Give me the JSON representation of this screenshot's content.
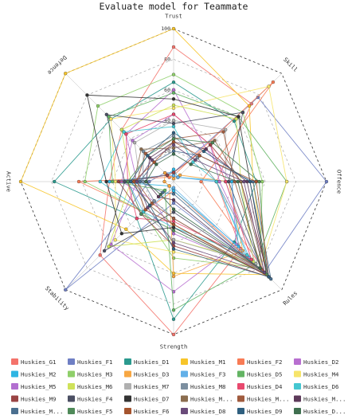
{
  "chart_data": {
    "type": "radar",
    "title": "Evaluate model for Teammate",
    "axes": [
      "Trust",
      "Skill",
      "Offence",
      "Rules",
      "Strength",
      "Stability",
      "Active",
      "Defence"
    ],
    "radial_range": [
      0,
      100
    ],
    "radial_ticks": [
      20,
      40,
      60,
      80,
      100
    ],
    "grid": true,
    "legend_position": "bottom",
    "series": [
      {
        "name": "Huskies_G1",
        "color": "#f4736b",
        "values": [
          88,
          72,
          28,
          62,
          100,
          68,
          42,
          48
        ]
      },
      {
        "name": "Huskies_F1",
        "color": "#6f7fc4",
        "values": [
          6,
          78,
          100,
          84,
          14,
          100,
          16,
          8
        ]
      },
      {
        "name": "Huskies_D1",
        "color": "#2b9a8e",
        "values": [
          65,
          56,
          54,
          56,
          90,
          34,
          78,
          58
        ]
      },
      {
        "name": "Huskies_M1",
        "color": "#f7c52a",
        "values": [
          100,
          70,
          52,
          86,
          60,
          44,
          100,
          100
        ]
      },
      {
        "name": "Huskies_F2",
        "color": "#f87b55",
        "values": [
          4,
          92,
          18,
          88,
          6,
          28,
          62,
          4
        ]
      },
      {
        "name": "Huskies_D2",
        "color": "#b86fd0",
        "values": [
          60,
          30,
          38,
          58,
          72,
          58,
          24,
          44
        ]
      },
      {
        "name": "Huskies_M2",
        "color": "#2fb5e3",
        "values": [
          8,
          4,
          38,
          60,
          6,
          4,
          42,
          6
        ]
      },
      {
        "name": "Huskies_M3",
        "color": "#8fcf6a",
        "values": [
          70,
          64,
          58,
          80,
          50,
          28,
          58,
          70
        ]
      },
      {
        "name": "Huskies_D3",
        "color": "#f7a743",
        "values": [
          2,
          6,
          36,
          64,
          62,
          4,
          6,
          8
        ]
      },
      {
        "name": "Huskies_F3",
        "color": "#62b0e8",
        "values": [
          4,
          4,
          28,
          70,
          4,
          28,
          30,
          6
        ]
      },
      {
        "name": "Huskies_D5",
        "color": "#63b463",
        "values": [
          58,
          60,
          74,
          76,
          84,
          8,
          40,
          60
        ]
      },
      {
        "name": "Huskies_M4",
        "color": "#f6e46a",
        "values": [
          48,
          88,
          74,
          80,
          46,
          54,
          38,
          58
        ]
      },
      {
        "name": "Huskies_M5",
        "color": "#b26fd0",
        "values": [
          44,
          34,
          30,
          82,
          34,
          18,
          34,
          38
        ]
      },
      {
        "name": "Huskies_M6",
        "color": "#cfe25a",
        "values": [
          50,
          58,
          44,
          74,
          38,
          60,
          28,
          48
        ]
      },
      {
        "name": "Huskies_M7",
        "color": "#b0b0b0",
        "values": [
          40,
          48,
          34,
          76,
          38,
          28,
          22,
          36
        ]
      },
      {
        "name": "Huskies_M8",
        "color": "#7c8fa0",
        "values": [
          30,
          22,
          28,
          84,
          24,
          18,
          20,
          28
        ]
      },
      {
        "name": "Huskies_D4",
        "color": "#e8496e",
        "values": [
          44,
          34,
          34,
          72,
          26,
          34,
          30,
          44
        ]
      },
      {
        "name": "Huskies_D6",
        "color": "#45c7d1",
        "values": [
          36,
          18,
          28,
          68,
          30,
          28,
          48,
          46
        ]
      },
      {
        "name": "Huskies_M9",
        "color": "#9a4444",
        "values": [
          6,
          34,
          44,
          88,
          42,
          30,
          36,
          6
        ]
      },
      {
        "name": "Huskies_F4",
        "color": "#4b4f63",
        "values": [
          38,
          64,
          36,
          82,
          20,
          64,
          32,
          62
        ]
      },
      {
        "name": "Huskies_D7",
        "color": "#333333",
        "values": [
          54,
          60,
          50,
          86,
          30,
          48,
          44,
          80
        ]
      },
      {
        "name": "Huskies_M...",
        "color": "#8b6d4f",
        "values": [
          22,
          38,
          44,
          84,
          28,
          22,
          26,
          30
        ]
      },
      {
        "name": "Huskies_M...",
        "color": "#a05b3e",
        "values": [
          28,
          46,
          40,
          82,
          24,
          20,
          24,
          26
        ]
      },
      {
        "name": "Huskies_M...",
        "color": "#5d3a5a",
        "values": [
          26,
          30,
          48,
          86,
          12,
          14,
          18,
          22
        ]
      },
      {
        "name": "Huskies_M...",
        "color": "#4a6f8f",
        "values": [
          20,
          24,
          52,
          90,
          8,
          10,
          22,
          18
        ]
      },
      {
        "name": "Huskies_F5",
        "color": "#4f8a59",
        "values": [
          28,
          36,
          56,
          86,
          32,
          30,
          30,
          24
        ]
      },
      {
        "name": "Huskies_F6",
        "color": "#a5542e",
        "values": [
          26,
          24,
          54,
          88,
          28,
          26,
          26,
          18
        ]
      },
      {
        "name": "Huskies_D8",
        "color": "#6a4b7a",
        "values": [
          24,
          20,
          46,
          84,
          40,
          24,
          24,
          20
        ]
      },
      {
        "name": "Huskies_D9",
        "color": "#2f5f7f",
        "values": [
          32,
          28,
          50,
          88,
          44,
          22,
          28,
          24
        ]
      },
      {
        "name": "Huskies_D...",
        "color": "#3f6f4f",
        "values": [
          18,
          16,
          42,
          80,
          18,
          12,
          18,
          16
        ]
      }
    ]
  }
}
